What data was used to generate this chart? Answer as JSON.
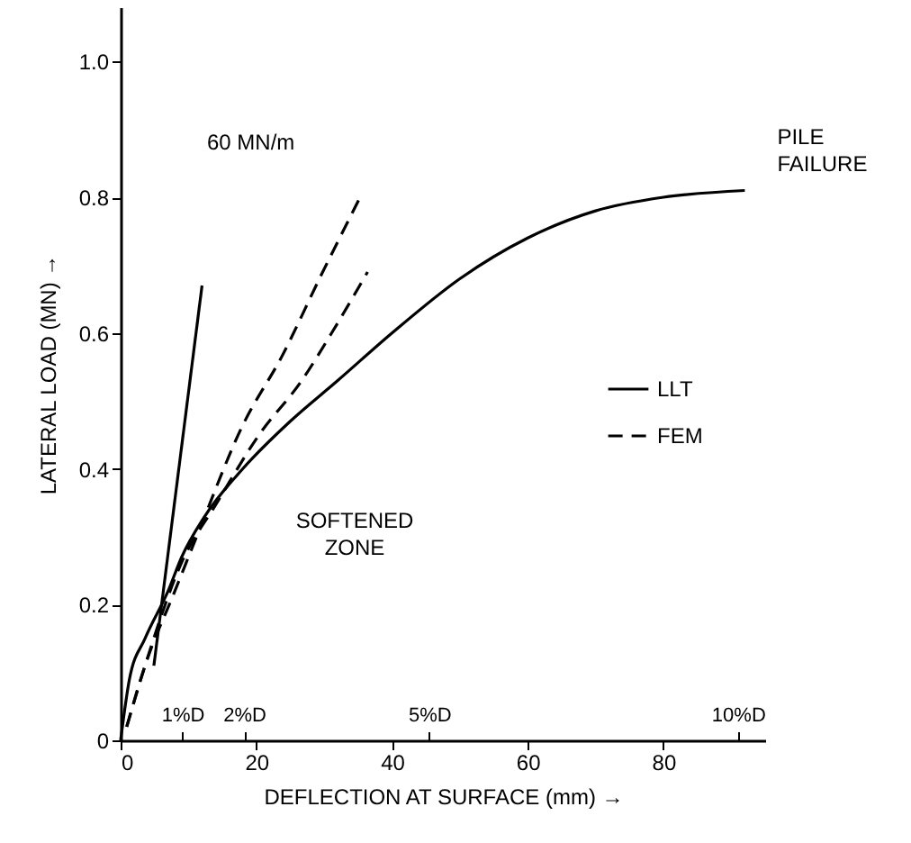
{
  "chart_data": {
    "type": "line",
    "xlabel": "DEFLECTION AT SURFACE (mm) →",
    "ylabel": "LATERAL LOAD (MN) →",
    "xlim": [
      0,
      95
    ],
    "ylim": [
      0,
      1.08
    ],
    "xticks": [
      0,
      20,
      40,
      60,
      80
    ],
    "yticks": [
      0,
      0.2,
      0.4,
      0.6,
      0.8,
      {
        "value": 1,
        "label": "1.0"
      }
    ],
    "x2lim": [
      0,
      10.44
    ],
    "x2ticks": [
      {
        "value": 1,
        "label": "1%D"
      },
      {
        "value": 2,
        "label": "2%D"
      },
      {
        "value": 5,
        "label": "5%D"
      },
      {
        "value": 10,
        "label": "10%D"
      }
    ],
    "grid": false,
    "legend": "right",
    "series": [
      {
        "name": "LLT",
        "color": "#000000",
        "line_style": "solid",
        "x": [
          0,
          1.3,
          3.6,
          7,
          9,
          12.4,
          18,
          25,
          32,
          40,
          50,
          60,
          70,
          80,
          92
        ],
        "values": [
          0,
          0.09,
          0.15,
          0.22,
          0.27,
          0.33,
          0.4,
          0.47,
          0.53,
          0.6,
          0.68,
          0.74,
          0.78,
          0.8,
          0.81
        ]
      },
      {
        "name": "FEM",
        "color": "#000000",
        "line_style": "dashed",
        "x": [
          0.9,
          3.6,
          8,
          11.6,
          17.8,
          24,
          29.3,
          35.3
        ],
        "values": [
          0.02,
          0.11,
          0.22,
          0.31,
          0.46,
          0.57,
          0.68,
          0.8
        ]
      },
      {
        "color": "#000000",
        "line_style": "dashed",
        "x": [
          0.9,
          3.6,
          8.9,
          14.2,
          20.4,
          26.7,
          31.1,
          36.4
        ],
        "values": [
          0.02,
          0.11,
          0.26,
          0.35,
          0.45,
          0.53,
          0.6,
          0.69
        ]
      },
      {
        "color": "#000000",
        "line_style": "solid",
        "x": [
          4.9,
          12
        ],
        "values": [
          0.11,
          0.67
        ]
      }
    ],
    "annotations": [
      "60 MN/m",
      "SOFTENED ZONE",
      {
        "text": "PILE FAILURE",
        "x": 92,
        "y": 0.81
      }
    ]
  }
}
